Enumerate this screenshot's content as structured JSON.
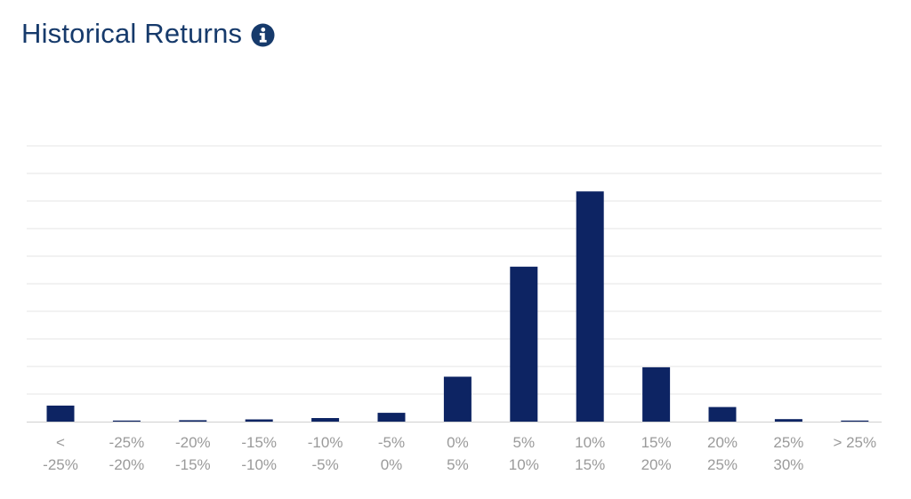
{
  "header": {
    "title": "Historical Returns",
    "info_icon": "info-icon"
  },
  "colors": {
    "title": "#163a6b",
    "bar": "#0d2463",
    "grid": "#e6e6e6",
    "tick_text": "#9a9a9a",
    "axis": "#cfcfcf"
  },
  "chart_data": {
    "type": "bar",
    "title": "",
    "xlabel": "",
    "ylabel": "",
    "categories": [
      [
        "<",
        "-25%"
      ],
      [
        "-25%",
        "-20%"
      ],
      [
        "-20%",
        "-15%"
      ],
      [
        "-15%",
        "-10%"
      ],
      [
        "-10%",
        "-5%"
      ],
      [
        "-5%",
        "0%"
      ],
      [
        "0%",
        "5%"
      ],
      [
        "5%",
        "10%"
      ],
      [
        "10%",
        "15%"
      ],
      [
        "15%",
        "20%"
      ],
      [
        "20%",
        "25%"
      ],
      [
        "25%",
        "30%"
      ],
      [
        "> 25%",
        ""
      ]
    ],
    "values": [
      5.8,
      0.3,
      0.5,
      0.8,
      1.3,
      3.2,
      16.3,
      56.2,
      83.5,
      19.7,
      5.3,
      0.9,
      0.3
    ],
    "ylim": [
      0,
      100
    ],
    "grid": true,
    "y_tick_labels_shown": false,
    "legend": "none"
  }
}
